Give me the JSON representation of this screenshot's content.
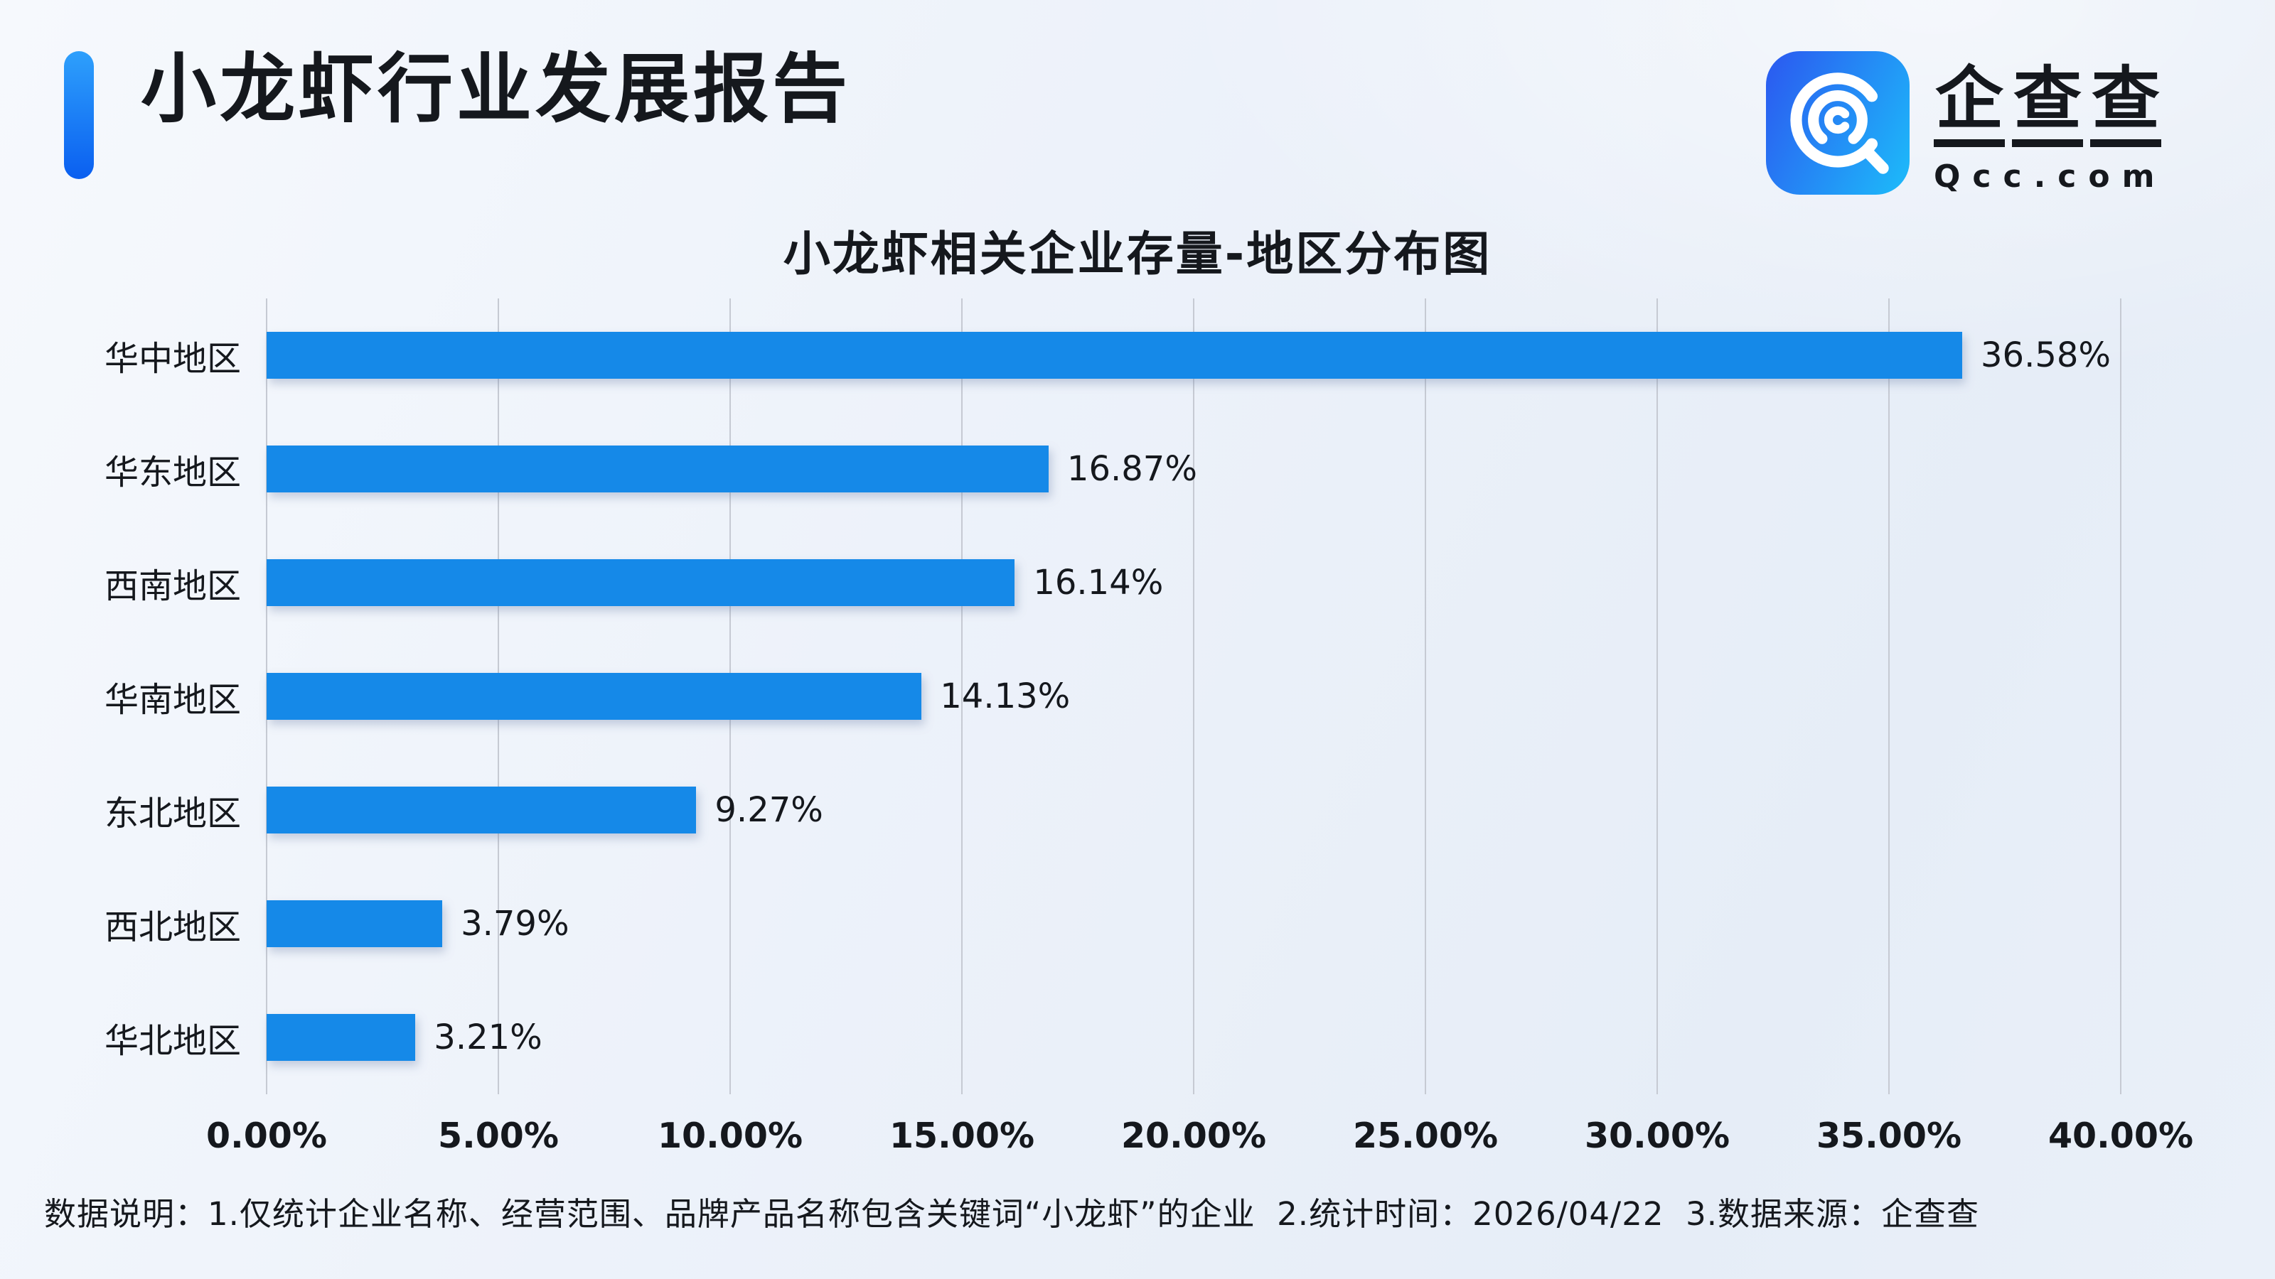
{
  "header": {
    "title": "小龙虾行业发展报告"
  },
  "logo": {
    "brand": "企查查",
    "domain": "Qcc.com",
    "icon": "qcc-magnifier-icon"
  },
  "chart_data": {
    "type": "bar",
    "orientation": "horizontal",
    "title": "小龙虾相关企业存量-地区分布图",
    "categories": [
      "华中地区",
      "华东地区",
      "西南地区",
      "华南地区",
      "东北地区",
      "西北地区",
      "华北地区"
    ],
    "values": [
      36.58,
      16.87,
      16.14,
      14.13,
      9.27,
      3.79,
      3.21
    ],
    "value_labels": [
      "36.58%",
      "16.87%",
      "16.14%",
      "14.13%",
      "9.27%",
      "3.79%",
      "3.21%"
    ],
    "x_ticks": [
      "0.00%",
      "5.00%",
      "10.00%",
      "15.00%",
      "20.00%",
      "25.00%",
      "30.00%",
      "35.00%",
      "40.00%"
    ],
    "xlim": [
      0,
      40
    ],
    "grid": "vertical",
    "legend": "none",
    "bar_color": "#1589E8"
  },
  "footer": {
    "text": "数据说明：1.仅统计企业名称、经营范围、品牌产品名称包含关键词“小龙虾”的企业  2.统计时间：2026/04/22  3.数据来源：企查查"
  },
  "colors": {
    "accent": "#1589E8",
    "accentbar_start": "#2EA0FC",
    "accentbar_end": "#0A5FF0",
    "logo_grad_start": "#2A60F1",
    "logo_grad_end": "#1EB4F9",
    "grid": "#C6CAD3",
    "text": "#15181D"
  }
}
